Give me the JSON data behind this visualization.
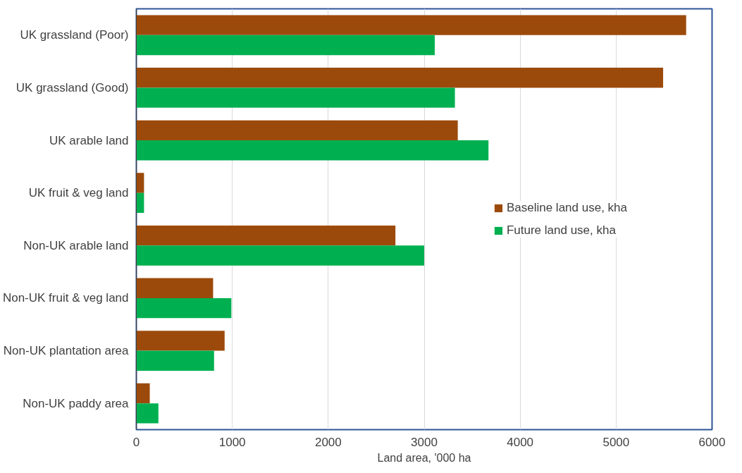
{
  "chart_data": {
    "type": "bar",
    "orientation": "horizontal",
    "xlabel": "Land area, '000 ha",
    "categories": [
      "UK grassland (Poor)",
      "UK grassland (Good)",
      "UK arable land",
      "UK fruit & veg land",
      "Non-UK arable land",
      "Non-UK fruit & veg land",
      "Non-UK plantation area",
      "Non-UK paddy area"
    ],
    "series": [
      {
        "name": "Baseline land use, kha",
        "color": "#9c4a0b",
        "values": [
          5730,
          5490,
          3350,
          80,
          2700,
          800,
          920,
          140
        ]
      },
      {
        "name": "Future land use, kha",
        "color": "#00b050",
        "values": [
          3110,
          3320,
          3670,
          80,
          3000,
          990,
          810,
          230
        ]
      }
    ],
    "xlim": [
      0,
      6000
    ],
    "xticks": [
      0,
      1000,
      2000,
      3000,
      4000,
      5000,
      6000
    ],
    "grid": "x",
    "legend": "right"
  }
}
